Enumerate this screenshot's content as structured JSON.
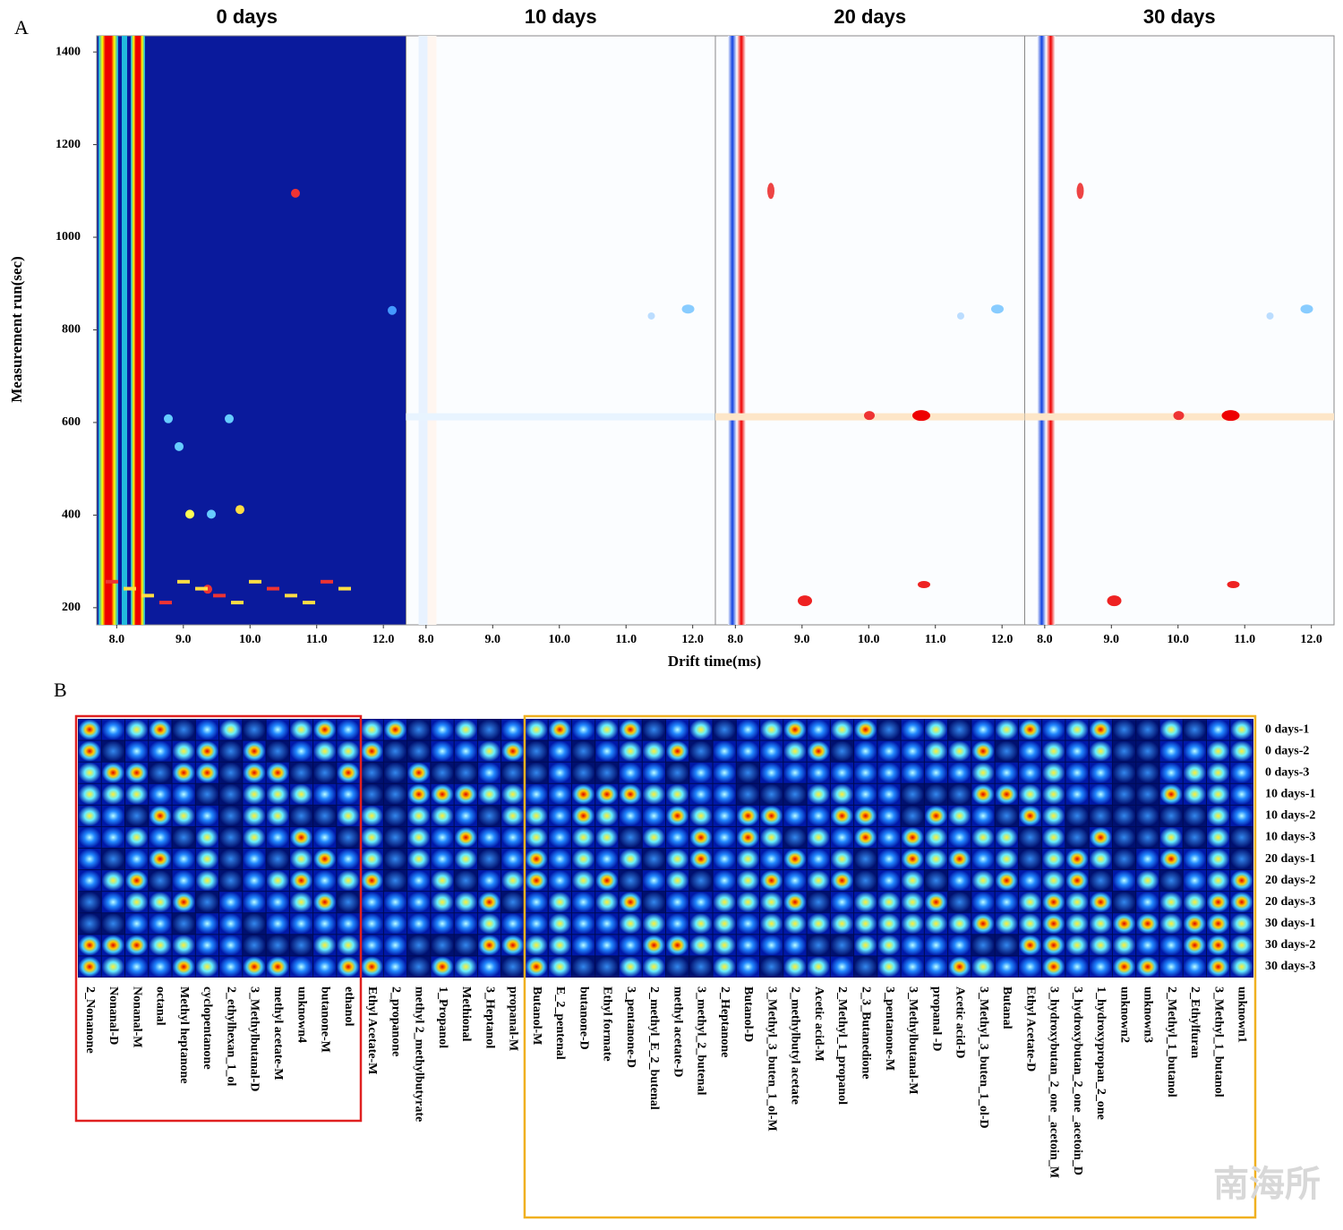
{
  "chart_data": [
    {
      "type": "heatmap",
      "label": "A",
      "panels": [
        "0 days",
        "10 days",
        "20 days",
        "30 days"
      ],
      "x_label": "Drift time(ms)",
      "y_label": "Measurement run(sec)",
      "xlim": [
        7.7,
        12.34
      ],
      "ylim": [
        163,
        1435
      ],
      "xticks": [
        {
          "value": 8,
          "label": "8.0"
        },
        {
          "value": 9,
          "label": "9.0"
        },
        {
          "value": 10,
          "label": "10.0"
        },
        {
          "value": 11,
          "label": "11.0"
        },
        {
          "value": 12,
          "label": "12.0"
        }
      ],
      "yticks": [
        200,
        400,
        600,
        800,
        1000,
        1200,
        1400
      ]
    },
    {
      "type": "fingerprint",
      "label": "B",
      "rows": [
        "0 days-1",
        "0 days-2",
        "0 days-3",
        "10 days-1",
        "10 days-2",
        "10 days-3",
        "20 days-1",
        "20 days-2",
        "20 days-3",
        "30 days-1",
        "30 days-2",
        "30 days-3"
      ],
      "columns": [
        "2_Nonanone",
        "Nonanal-D",
        "Nonanal-M",
        "octanal",
        "Methyl heptanone",
        "cyclopentanone",
        "2_ethylhexan_1_ol",
        "3_Methylbutanal-D",
        "methyl acetate-M",
        "unknown4",
        "butanone-M",
        "ethanol",
        "Ethyl Acetate-M",
        "2_propanone",
        "methyl 2_methylbutyrate",
        "1_Propanol",
        "Methional",
        "3_Heptanol",
        "propanal-M",
        "Butanol-M",
        "E_2_pentenal",
        "butanone-D",
        "Ethyl formate",
        "3_pentanone-D",
        "2_methyl_E_2_butenal",
        "methyl acetate-D",
        "3_methyl_2_butenal",
        "2_Heptanone",
        "Butanol-D",
        "3_Methyl_3_buten_1_ol-M",
        "2_methylbutyl acetate",
        "Acetic acid-M",
        "2_Methyl_1_propanol",
        "2_3_Butanedione",
        "3_pentanone-M",
        "3_Methylbutanal-M",
        "propanal -D",
        "Acetic acid-D",
        "3_Methyl_3_buten_1_ol-D",
        "Butanal",
        "Ethyl Acetate-D",
        "3_hydroxybutan_2_one _acetoin_M",
        "3_hydroxybutan_2_one _acetoin_D",
        "1_hydroxypropan_2_one",
        "unknown2",
        "unknown3",
        "2_Methyl_1_butanol",
        "2_Ethylfuran",
        "3_Methyl_1_butanol",
        "unknown1"
      ],
      "watermark": "南海所"
    }
  ]
}
